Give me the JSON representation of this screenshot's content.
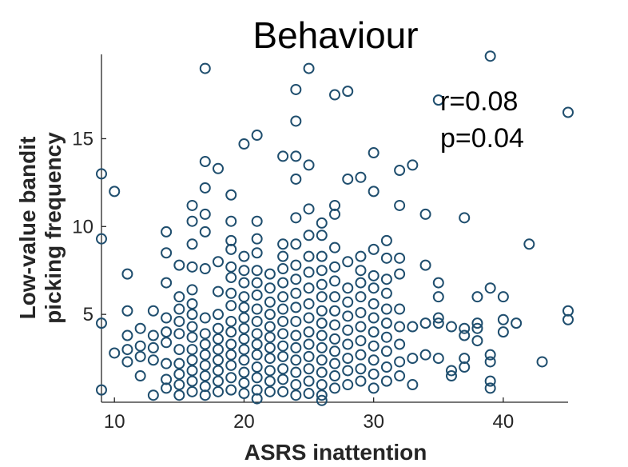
{
  "chart_data": {
    "type": "scatter",
    "title": "Behaviour",
    "xlabel": "ASRS inattention",
    "ylabel": [
      "Low-value bandit",
      "picking frequency"
    ],
    "xlim": [
      9,
      45
    ],
    "ylim": [
      0,
      19.8
    ],
    "xticks": [
      10,
      20,
      30,
      40
    ],
    "yticks": [
      5,
      10,
      15
    ],
    "annotations": [
      "r=0.08",
      "p=0.04"
    ],
    "marker_color": "#1f4e6e",
    "points": [
      [
        9,
        13
      ],
      [
        9,
        9.3
      ],
      [
        9,
        4.5
      ],
      [
        9,
        0.7
      ],
      [
        10,
        12
      ],
      [
        10,
        2.8
      ],
      [
        11,
        7.3
      ],
      [
        11,
        5.2
      ],
      [
        11,
        3.8
      ],
      [
        11,
        3
      ],
      [
        11,
        2.3
      ],
      [
        12,
        4.2
      ],
      [
        12,
        3.2
      ],
      [
        12,
        2.6
      ],
      [
        12,
        1.5
      ],
      [
        13,
        5.2
      ],
      [
        13,
        3.8
      ],
      [
        13,
        3.1
      ],
      [
        13,
        2.4
      ],
      [
        13,
        0.4
      ],
      [
        14,
        9.7
      ],
      [
        14,
        8.5
      ],
      [
        14,
        6.8
      ],
      [
        14,
        4.8
      ],
      [
        14,
        4
      ],
      [
        14,
        3.4
      ],
      [
        14,
        2.2
      ],
      [
        14,
        1.3
      ],
      [
        14,
        0.8
      ],
      [
        15,
        7.8
      ],
      [
        15,
        6
      ],
      [
        15,
        5.3
      ],
      [
        15,
        4.6
      ],
      [
        15,
        3.9
      ],
      [
        15,
        3
      ],
      [
        15,
        2.2
      ],
      [
        15,
        1.6
      ],
      [
        15,
        1
      ],
      [
        15,
        0.4
      ],
      [
        16,
        11.2
      ],
      [
        16,
        10.3
      ],
      [
        16,
        9
      ],
      [
        16,
        7.7
      ],
      [
        16,
        6.4
      ],
      [
        16,
        5.6
      ],
      [
        16,
        5
      ],
      [
        16,
        4.3
      ],
      [
        16,
        3.7
      ],
      [
        16,
        3
      ],
      [
        16,
        2.4
      ],
      [
        16,
        1.8
      ],
      [
        16,
        1.2
      ],
      [
        16,
        0.6
      ],
      [
        17,
        19
      ],
      [
        17,
        13.7
      ],
      [
        17,
        12.2
      ],
      [
        17,
        10.7
      ],
      [
        17,
        9.7
      ],
      [
        17,
        7.6
      ],
      [
        17,
        4.8
      ],
      [
        17,
        3.9
      ],
      [
        17,
        3.3
      ],
      [
        17,
        2.7
      ],
      [
        17,
        2.1
      ],
      [
        17,
        1.5
      ],
      [
        17,
        0.9
      ],
      [
        17,
        0.4
      ],
      [
        18,
        13.3
      ],
      [
        18,
        8
      ],
      [
        18,
        6.3
      ],
      [
        18,
        5
      ],
      [
        18,
        4.2
      ],
      [
        18,
        3.6
      ],
      [
        18,
        3
      ],
      [
        18,
        2.4
      ],
      [
        18,
        1.8
      ],
      [
        18,
        1.2
      ],
      [
        18,
        0.6
      ],
      [
        19,
        11.8
      ],
      [
        19,
        10.3
      ],
      [
        19,
        9.2
      ],
      [
        19,
        8.7
      ],
      [
        19,
        7.7
      ],
      [
        19,
        7.1
      ],
      [
        19,
        6.2
      ],
      [
        19,
        5.5
      ],
      [
        19,
        4.6
      ],
      [
        19,
        4
      ],
      [
        19,
        3.3
      ],
      [
        19,
        2.7
      ],
      [
        19,
        2.1
      ],
      [
        19,
        1.4
      ],
      [
        19,
        0.7
      ],
      [
        20,
        14.7
      ],
      [
        20,
        8.3
      ],
      [
        20,
        7.5
      ],
      [
        20,
        6.8
      ],
      [
        20,
        6
      ],
      [
        20,
        5.4
      ],
      [
        20,
        4.8
      ],
      [
        20,
        4.2
      ],
      [
        20,
        3.6
      ],
      [
        20,
        3
      ],
      [
        20,
        2.4
      ],
      [
        20,
        1.7
      ],
      [
        20,
        1.1
      ],
      [
        20,
        0.5
      ],
      [
        21,
        15.2
      ],
      [
        21,
        10.3
      ],
      [
        21,
        9.3
      ],
      [
        21,
        8.5
      ],
      [
        21,
        7.5
      ],
      [
        21,
        6.8
      ],
      [
        21,
        6.1
      ],
      [
        21,
        5.3
      ],
      [
        21,
        4.6
      ],
      [
        21,
        3.9
      ],
      [
        21,
        3.3
      ],
      [
        21,
        2.7
      ],
      [
        21,
        2
      ],
      [
        21,
        1.4
      ],
      [
        21,
        0.7
      ],
      [
        21,
        0.2
      ],
      [
        22,
        7.3
      ],
      [
        22,
        6.5
      ],
      [
        22,
        5.7
      ],
      [
        22,
        5
      ],
      [
        22,
        4.3
      ],
      [
        22,
        3.7
      ],
      [
        22,
        3.1
      ],
      [
        22,
        2.5
      ],
      [
        22,
        1.8
      ],
      [
        22,
        1.2
      ],
      [
        22,
        0.6
      ],
      [
        23,
        14
      ],
      [
        23,
        9
      ],
      [
        23,
        8.3
      ],
      [
        23,
        7.6
      ],
      [
        23,
        6.8
      ],
      [
        23,
        6
      ],
      [
        23,
        5.3
      ],
      [
        23,
        4.6
      ],
      [
        23,
        3.9
      ],
      [
        23,
        3.2
      ],
      [
        23,
        2.6
      ],
      [
        23,
        1.9
      ],
      [
        23,
        1.3
      ],
      [
        23,
        0.6
      ],
      [
        24,
        17.8
      ],
      [
        24,
        16
      ],
      [
        24,
        14
      ],
      [
        24,
        12.7
      ],
      [
        24,
        10.5
      ],
      [
        24,
        9
      ],
      [
        24,
        7.8
      ],
      [
        24,
        7
      ],
      [
        24,
        6.2
      ],
      [
        24,
        5.4
      ],
      [
        24,
        4.6
      ],
      [
        24,
        3.8
      ],
      [
        24,
        3.1
      ],
      [
        24,
        2.4
      ],
      [
        24,
        1.7
      ],
      [
        24,
        1
      ],
      [
        24,
        0.4
      ],
      [
        25,
        19
      ],
      [
        25,
        13.5
      ],
      [
        25,
        11
      ],
      [
        25,
        9.5
      ],
      [
        25,
        8.3
      ],
      [
        25,
        7.4
      ],
      [
        25,
        6.5
      ],
      [
        25,
        5.6
      ],
      [
        25,
        4.8
      ],
      [
        25,
        4
      ],
      [
        25,
        3.3
      ],
      [
        25,
        2.6
      ],
      [
        25,
        1.9
      ],
      [
        25,
        1.2
      ],
      [
        25,
        0.5
      ],
      [
        26,
        10.2
      ],
      [
        26,
        9.5
      ],
      [
        26,
        8.3
      ],
      [
        26,
        7.5
      ],
      [
        26,
        6.7
      ],
      [
        26,
        6
      ],
      [
        26,
        5.2
      ],
      [
        26,
        4.5
      ],
      [
        26,
        3.8
      ],
      [
        26,
        3.1
      ],
      [
        26,
        2.4
      ],
      [
        26,
        1.7
      ],
      [
        26,
        1
      ],
      [
        26,
        0.4
      ],
      [
        26,
        0.1
      ],
      [
        27,
        17.5
      ],
      [
        27,
        11.2
      ],
      [
        27,
        10.7
      ],
      [
        27,
        8.8
      ],
      [
        27,
        7.7
      ],
      [
        27,
        6.9
      ],
      [
        27,
        6
      ],
      [
        27,
        5.2
      ],
      [
        27,
        4.4
      ],
      [
        27,
        3.6
      ],
      [
        27,
        2.9
      ],
      [
        27,
        2.2
      ],
      [
        27,
        1.5
      ],
      [
        27,
        0.8
      ],
      [
        28,
        17.7
      ],
      [
        28,
        12.7
      ],
      [
        28,
        8
      ],
      [
        28,
        6.5
      ],
      [
        28,
        5.7
      ],
      [
        28,
        4.9
      ],
      [
        28,
        4.1
      ],
      [
        28,
        3.3
      ],
      [
        28,
        2.5
      ],
      [
        28,
        1.8
      ],
      [
        28,
        1
      ],
      [
        29,
        12.8
      ],
      [
        29,
        8.3
      ],
      [
        29,
        7.5
      ],
      [
        29,
        6.8
      ],
      [
        29,
        6
      ],
      [
        29,
        5.1
      ],
      [
        29,
        4.3
      ],
      [
        29,
        3.5
      ],
      [
        29,
        2.7
      ],
      [
        29,
        1.9
      ],
      [
        29,
        1.2
      ],
      [
        30,
        14.2
      ],
      [
        30,
        12
      ],
      [
        30,
        8.7
      ],
      [
        30,
        7.2
      ],
      [
        30,
        6.5
      ],
      [
        30,
        5.6
      ],
      [
        30,
        4.8
      ],
      [
        30,
        4
      ],
      [
        30,
        3.2
      ],
      [
        30,
        2.4
      ],
      [
        30,
        1.6
      ],
      [
        30,
        0.8
      ],
      [
        31,
        9.2
      ],
      [
        31,
        8.2
      ],
      [
        31,
        7
      ],
      [
        31,
        6.2
      ],
      [
        31,
        5.3
      ],
      [
        31,
        4.5
      ],
      [
        31,
        3.7
      ],
      [
        31,
        2.9
      ],
      [
        31,
        2
      ],
      [
        31,
        1.2
      ],
      [
        32,
        13.2
      ],
      [
        32,
        11.2
      ],
      [
        32,
        8.2
      ],
      [
        32,
        7.3
      ],
      [
        32,
        5.3
      ],
      [
        32,
        4.3
      ],
      [
        32,
        3.3
      ],
      [
        32,
        2.3
      ],
      [
        32,
        1.5
      ],
      [
        33,
        13.5
      ],
      [
        33,
        4.3
      ],
      [
        33,
        2.5
      ],
      [
        33,
        1
      ],
      [
        34,
        10.7
      ],
      [
        34,
        7.8
      ],
      [
        34,
        4.5
      ],
      [
        34,
        2.7
      ],
      [
        35,
        17.2
      ],
      [
        35,
        6.8
      ],
      [
        35,
        6
      ],
      [
        35,
        4.8
      ],
      [
        35,
        4.5
      ],
      [
        35,
        2.5
      ],
      [
        36,
        4.3
      ],
      [
        36,
        1.8
      ],
      [
        36,
        1.5
      ],
      [
        37,
        10.5
      ],
      [
        37,
        4.2
      ],
      [
        37,
        3.8
      ],
      [
        37,
        2.5
      ],
      [
        37,
        2
      ],
      [
        38,
        6
      ],
      [
        38,
        4.5
      ],
      [
        38,
        4.2
      ],
      [
        38,
        3.5
      ],
      [
        39,
        19.7
      ],
      [
        39,
        6.5
      ],
      [
        39,
        2.7
      ],
      [
        39,
        2.3
      ],
      [
        39,
        1.2
      ],
      [
        39,
        0.8
      ],
      [
        40,
        6
      ],
      [
        40,
        4.7
      ],
      [
        40,
        4
      ],
      [
        41,
        4.5
      ],
      [
        42,
        9
      ],
      [
        43,
        2.3
      ],
      [
        45,
        16.5
      ],
      [
        45,
        5.2
      ],
      [
        45,
        4.7
      ]
    ]
  }
}
